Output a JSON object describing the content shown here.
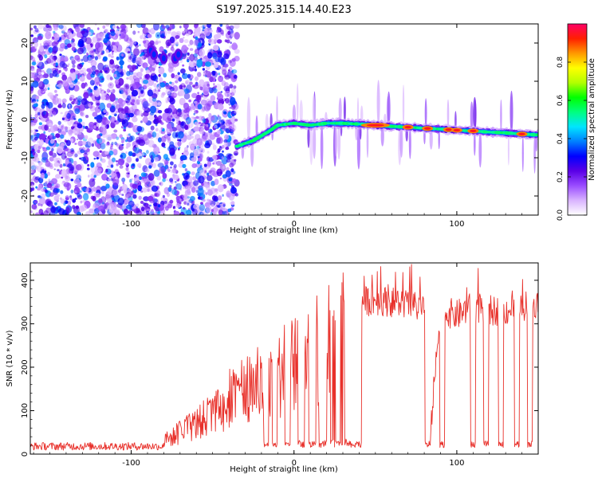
{
  "figure": {
    "title": "S197.2025.315.14.40.E23"
  },
  "chart_data": [
    {
      "type": "heatmap",
      "title": "S197.2025.315.14.40.E23",
      "xlabel": "Height of straight line (km)",
      "ylabel": "Frequency (Hz)",
      "xlim": [
        -162,
        150
      ],
      "ylim": [
        -25,
        25
      ],
      "x_ticks": [
        -100,
        0,
        100
      ],
      "y_ticks": [
        -20,
        -10,
        0,
        10,
        20
      ],
      "x_tick_labels": [
        "-100",
        "0",
        "100"
      ],
      "y_tick_labels": [
        "-20",
        "-10",
        "0",
        "10",
        "20"
      ],
      "noise_region_x": [
        -162,
        -35
      ],
      "ridge": {
        "x": [
          -35,
          -25,
          -15,
          -10,
          0,
          10,
          20,
          30,
          40,
          50,
          60,
          70,
          80,
          90,
          100,
          110,
          120,
          130,
          140,
          148
        ],
        "frequency": [
          -7,
          -5.5,
          -3,
          -1.5,
          -1,
          -1.5,
          -1,
          -1,
          -1.2,
          -1.5,
          -1.8,
          -2,
          -2.3,
          -2.5,
          -2.8,
          -3,
          -3.3,
          -3.5,
          -3.8,
          -4
        ],
        "hotspots_x": [
          50,
          70,
          82,
          95,
          100,
          110,
          140
        ]
      },
      "colorbar": {
        "label": "Normalized spectral amplitude",
        "min": 0.0,
        "max": 1.0,
        "ticks": [
          0.0,
          0.2,
          0.4,
          0.6,
          0.8
        ],
        "tick_labels": [
          "0.0",
          "0.2",
          "0.4",
          "0.6",
          "0.8"
        ],
        "colors": [
          "#ffffff",
          "#d9b3ff",
          "#9a4dff",
          "#5a00e6",
          "#0000ff",
          "#0080ff",
          "#00e5ff",
          "#00ff80",
          "#00ff00",
          "#b3ff00",
          "#ffff00",
          "#ff9900",
          "#ff2000",
          "#ff0066"
        ]
      }
    },
    {
      "type": "line",
      "xlabel": "Height of straight line (km)",
      "ylabel": "SNR (10 * v/v)",
      "xlim": [
        -162,
        150
      ],
      "ylim": [
        0,
        440
      ],
      "x_ticks": [
        -100,
        0,
        100
      ],
      "y_ticks": [
        0,
        100,
        200,
        300,
        400
      ],
      "x_tick_labels": [
        "-100",
        "0",
        "100"
      ],
      "y_tick_labels": [
        "0",
        "100",
        "200",
        "300",
        "400"
      ],
      "series": [
        {
          "name": "SNR",
          "color": "#e8302a",
          "x": [
            -162,
            -140,
            -120,
            -100,
            -90,
            -80,
            -70,
            -60,
            -50,
            -40,
            -30,
            -20,
            -10,
            0,
            10,
            20,
            30,
            40,
            50,
            60,
            70,
            80,
            83,
            90,
            100,
            110,
            120,
            130,
            140,
            150
          ],
          "y": [
            20,
            18,
            18,
            17,
            22,
            40,
            60,
            90,
            120,
            150,
            180,
            200,
            230,
            260,
            280,
            320,
            340,
            350,
            355,
            350,
            345,
            330,
            20,
            330,
            320,
            340,
            330,
            330,
            340,
            350
          ],
          "dropouts_x": [
            -17,
            -12,
            -4,
            5,
            12,
            17,
            27,
            34,
            38,
            40,
            82,
            91,
            110,
            118,
            127,
            137,
            145
          ]
        }
      ]
    }
  ]
}
